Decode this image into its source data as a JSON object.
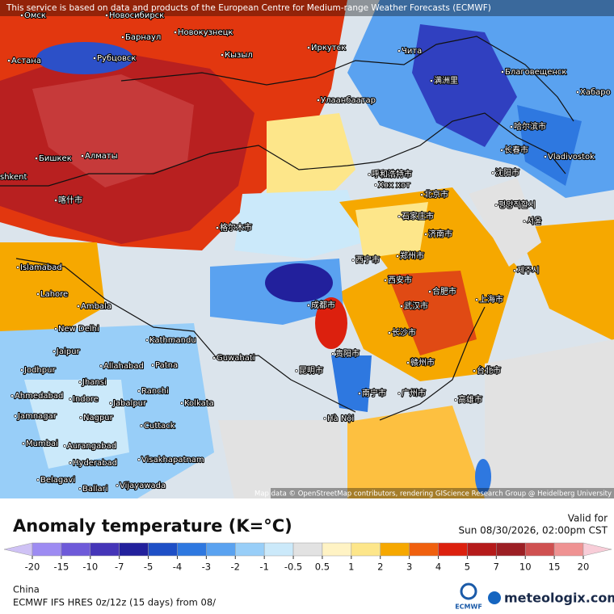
{
  "header": {
    "notice": "This service is based on data and products of the European Centre for Medium-range Weather Forecasts (ECMWF)",
    "attribution": "Map data © OpenStreetMap contributors, rendering GIScience Research Group @ Heidelberg University"
  },
  "map": {
    "labels": [
      "Омск",
      "Новосибирск",
      "Барнаул",
      "Новокузнецк",
      "Рубцовск",
      "Астана",
      "Кызыл",
      "Иркутск",
      "Чита",
      "满洲里",
      "Благовещенск",
      "Хабаро",
      "Улаанбаатар",
      "哈尔滨市",
      "Бишкек",
      "Алматы",
      "Vladivostok",
      "长春市",
      "沈阳市",
      "呼和浩特市",
      "Хөх хот",
      "北京市",
      "shkent",
      "喀什市",
      "평양직할시",
      "서울",
      "石家庄市",
      "格尔木市",
      "济南市",
      "西宁市",
      "郑州市",
      "Islamabad",
      "제주시",
      "Lahore",
      "西安市",
      "合肥市",
      "上海市",
      "Ambala",
      "成都市",
      "武汉市",
      "New Delhi",
      "Kathmandu",
      "长沙市",
      "Jaipur",
      "贵阳市",
      "赣州市",
      "Guwahati",
      "Allahabad",
      "Patna",
      "台北市",
      "Jodhpur",
      "Jhansi",
      "昆明市",
      "Ranchi",
      "南宁市",
      "广州市",
      "高雄市",
      "Ahmedabad",
      "Indore",
      "Jabalpur",
      "Jamnagar",
      "Nagpur",
      "Kolkata",
      "Cuttack",
      "Hà Nội",
      "Mumbai",
      "Aurangabad",
      "Hyderabad",
      "Visakhapatnam",
      "Belagavi",
      "Vijayawada",
      "Ballari"
    ]
  },
  "panel": {
    "title": "Anomaly temperature (K=°C)",
    "valid_label": "Valid for",
    "valid_time": "Sun 08/30/2026, 02:00pm CST",
    "region": "China",
    "model": "ECMWF IFS HRES 0z/12z (15 days) from 08/",
    "ecmwf_logo": "ECMWF",
    "brand": "meteologix.com"
  },
  "legend": {
    "ticks": [
      -20,
      -15,
      -10,
      -7,
      -5,
      -4,
      -3,
      -2,
      -1,
      -0.5,
      0.5,
      1,
      2,
      3,
      4,
      5,
      7,
      10,
      15,
      20
    ],
    "colors": [
      "#cfc2f5",
      "#9d8bf2",
      "#6e5ad9",
      "#4535b8",
      "#22209c",
      "#1e4fc6",
      "#2e78e0",
      "#5aa2f0",
      "#98cef8",
      "#cbe9fa",
      "#e2e2e2",
      "#fff3c4",
      "#fde68a",
      "#f6a800",
      "#f0600e",
      "#dc200e",
      "#b51a1a",
      "#9c1f24",
      "#cf5050",
      "#ef9292",
      "#f8cdd8"
    ]
  }
}
